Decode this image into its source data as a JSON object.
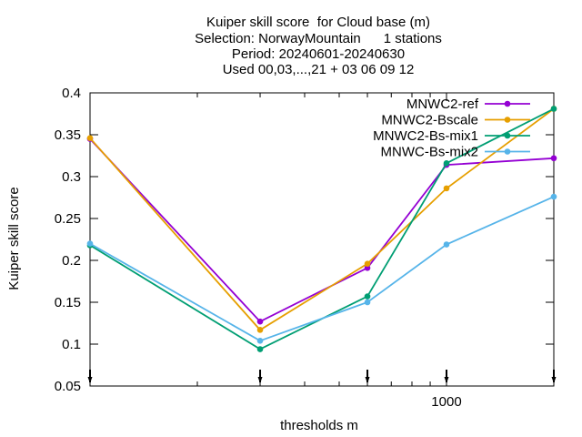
{
  "chart_data": {
    "type": "line",
    "title_lines": [
      "Kuiper skill score  for Cloud base (m)",
      "Selection: NorwayMountain      1 stations",
      "Period: 20240601-20240630",
      "Used 00,03,...,21 + 03 06 09 12"
    ],
    "xlabel": "thresholds m",
    "ylabel": "Kuiper skill score",
    "x_scale": "log",
    "xlim": [
      100,
      2000
    ],
    "ylim": [
      0.05,
      0.4
    ],
    "yticks": [
      "0.05",
      "0.1",
      "0.15",
      "0.2",
      "0.25",
      "0.3",
      "0.35",
      "0.4"
    ],
    "xticks": [
      "1000"
    ],
    "x": [
      100,
      300,
      600,
      1000,
      2000
    ],
    "grid": false,
    "legend_position": "top-right",
    "series": [
      {
        "name": "MNWC2-ref",
        "color": "#9400d3",
        "values": [
          0.345,
          0.127,
          0.191,
          0.314,
          0.322
        ]
      },
      {
        "name": "MNWC2-Bscale",
        "color": "#e69f00",
        "values": [
          0.346,
          0.117,
          0.196,
          0.286,
          0.381
        ]
      },
      {
        "name": "MNWC2-Bs-mix1",
        "color": "#009e73",
        "values": [
          0.218,
          0.094,
          0.157,
          0.316,
          0.381
        ]
      },
      {
        "name": "MNWC-Bs-mix2",
        "color": "#56b4e9",
        "values": [
          0.22,
          0.104,
          0.15,
          0.219,
          0.276
        ]
      }
    ]
  }
}
